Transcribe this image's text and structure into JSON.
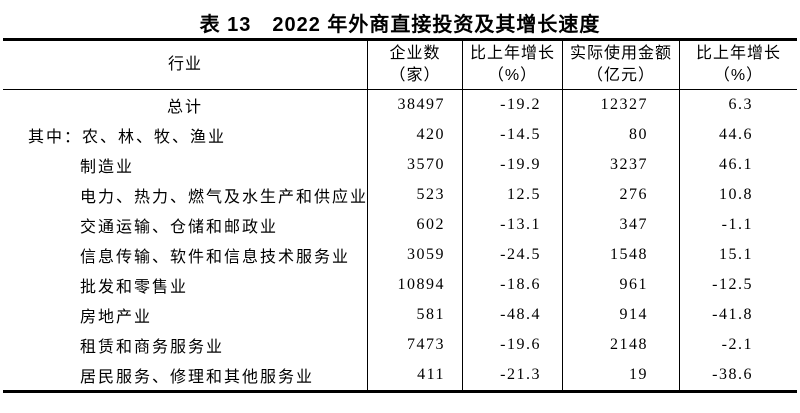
{
  "colors": {
    "background": "#ffffff",
    "text": "#000000",
    "border": "#000000"
  },
  "table": {
    "title": "表 13　2022 年外商直接投资及其增长速度",
    "columns": {
      "industry": "行业",
      "enterprises_line1": "企业数",
      "enterprises_line2": "（家）",
      "growth1_line1": "比上年增长",
      "growth1_line2": "（%）",
      "amount_line1": "实际使用金额",
      "amount_line2": "（亿元）",
      "growth2_line1": "比上年增长",
      "growth2_line2": "（%）"
    },
    "rows": [
      {
        "row_type": "total",
        "industry": "总计",
        "enterprises": "38497",
        "growth1": "-19.2",
        "amount": "12327",
        "growth2": "6.3"
      },
      {
        "row_type": "group_start",
        "industry": "其中：农、林、牧、渔业",
        "enterprises": "420",
        "growth1": "-14.5",
        "amount": "80",
        "growth2": "44.6"
      },
      {
        "row_type": "item",
        "industry": "制造业",
        "enterprises": "3570",
        "growth1": "-19.9",
        "amount": "3237",
        "growth2": "46.1"
      },
      {
        "row_type": "item",
        "industry": "电力、热力、燃气及水生产和供应业",
        "enterprises": "523",
        "growth1": "12.5",
        "amount": "276",
        "growth2": "10.8"
      },
      {
        "row_type": "item",
        "industry": "交通运输、仓储和邮政业",
        "enterprises": "602",
        "growth1": "-13.1",
        "amount": "347",
        "growth2": "-1.1"
      },
      {
        "row_type": "item",
        "industry": "信息传输、软件和信息技术服务业",
        "enterprises": "3059",
        "growth1": "-24.5",
        "amount": "1548",
        "growth2": "15.1"
      },
      {
        "row_type": "item",
        "industry": "批发和零售业",
        "enterprises": "10894",
        "growth1": "-18.6",
        "amount": "961",
        "growth2": "-12.5"
      },
      {
        "row_type": "item",
        "industry": "房地产业",
        "enterprises": "581",
        "growth1": "-48.4",
        "amount": "914",
        "growth2": "-41.8"
      },
      {
        "row_type": "item",
        "industry": "租赁和商务服务业",
        "enterprises": "7473",
        "growth1": "-19.6",
        "amount": "2148",
        "growth2": "-2.1"
      },
      {
        "row_type": "item",
        "industry": "居民服务、修理和其他服务业",
        "enterprises": "411",
        "growth1": "-21.3",
        "amount": "19",
        "growth2": "-38.6"
      }
    ]
  }
}
